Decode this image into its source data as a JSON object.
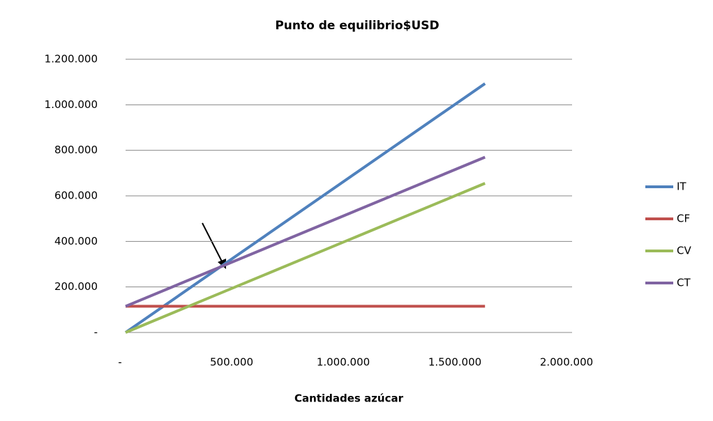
{
  "chart_data": {
    "type": "line",
    "title": "Punto de equilibrio$USD",
    "xlabel": "Cantidades azúcar",
    "x": [
      0,
      1610000
    ],
    "series": [
      {
        "name": "IT",
        "color": "#4f81bd",
        "values": [
          0,
          1093000
        ]
      },
      {
        "name": "CF",
        "color": "#c0504d",
        "values": [
          115000,
          115000
        ]
      },
      {
        "name": "CV",
        "color": "#9bbb59",
        "values": [
          0,
          655000
        ]
      },
      {
        "name": "CT",
        "color": "#8064a2",
        "values": [
          115000,
          770000
        ]
      }
    ],
    "xlim": [
      0,
      2000000
    ],
    "xticks": [
      {
        "value": 0,
        "label": "-"
      },
      {
        "value": 500000,
        "label": "500.000"
      },
      {
        "value": 1000000,
        "label": "1.000.000"
      },
      {
        "value": 1500000,
        "label": "1.500.000"
      },
      {
        "value": 2000000,
        "label": "2.000.000"
      }
    ],
    "ylim": [
      0,
      1200000
    ],
    "yticks": [
      {
        "value": 0,
        "label": "-"
      },
      {
        "value": 200000,
        "label": "200.000"
      },
      {
        "value": 400000,
        "label": "400.000"
      },
      {
        "value": 600000,
        "label": "600.000"
      },
      {
        "value": 800000,
        "label": "800.000"
      },
      {
        "value": 1000000,
        "label": "1.000.000"
      },
      {
        "value": 1200000,
        "label": "1.200.000"
      }
    ],
    "grid": true,
    "legend": "right"
  }
}
